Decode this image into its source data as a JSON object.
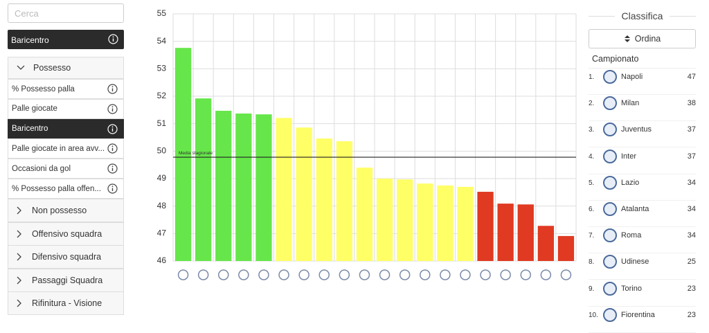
{
  "sidebar": {
    "search_placeholder": "Cerca",
    "selected": "Baricentro",
    "open_group": {
      "label": "Possesso",
      "items": [
        "% Possesso palla",
        "Palle giocate",
        "Baricentro",
        "Palle giocate in area avv...",
        "Occasioni da gol",
        "% Possesso palla offen..."
      ]
    },
    "groups": [
      "Non possesso",
      "Offensivo squadra",
      "Difensivo squadra",
      "Passaggi Squadra",
      "Rifinitura - Visione"
    ]
  },
  "chart_data": {
    "type": "bar",
    "categories": [
      null,
      null,
      null,
      null,
      null,
      null,
      null,
      null,
      null,
      null,
      null,
      null,
      null,
      null,
      null,
      null,
      null,
      null,
      null,
      null
    ],
    "values": [
      53.76,
      51.92,
      51.47,
      51.37,
      51.34,
      51.21,
      50.86,
      50.46,
      50.36,
      49.4,
      49.0,
      48.97,
      48.82,
      48.75,
      48.7,
      48.52,
      48.09,
      48.06,
      47.28,
      46.91
    ],
    "colors": [
      "#66e64a",
      "#66e64a",
      "#66e64a",
      "#66e64a",
      "#66e64a",
      "#ffff66",
      "#ffff66",
      "#ffff66",
      "#ffff66",
      "#ffff66",
      "#ffff66",
      "#ffff66",
      "#ffff66",
      "#ffff66",
      "#ffff66",
      "#e03a22",
      "#e03a22",
      "#e03a22",
      "#e03a22",
      "#e03a22"
    ],
    "ylim": [
      46,
      55
    ],
    "yticks": [
      46,
      47,
      48,
      49,
      50,
      51,
      52,
      53,
      54,
      55
    ],
    "grid": true,
    "reference_line": {
      "label": "Media stagionale",
      "value": 49.78
    }
  },
  "ranking": {
    "title": "Classifica",
    "sort_button": "Ordina",
    "subtitle": "Campionato",
    "rows": [
      [
        "1.",
        "Napoli",
        47
      ],
      [
        "2.",
        "Milan",
        38
      ],
      [
        "3.",
        "Juventus",
        37
      ],
      [
        "4.",
        "Inter",
        37
      ],
      [
        "5.",
        "Lazio",
        34
      ],
      [
        "6.",
        "Atalanta",
        34
      ],
      [
        "7.",
        "Roma",
        34
      ],
      [
        "8.",
        "Udinese",
        25
      ],
      [
        "9.",
        "Torino",
        23
      ],
      [
        "10.",
        "Fiorentina",
        23
      ]
    ]
  }
}
